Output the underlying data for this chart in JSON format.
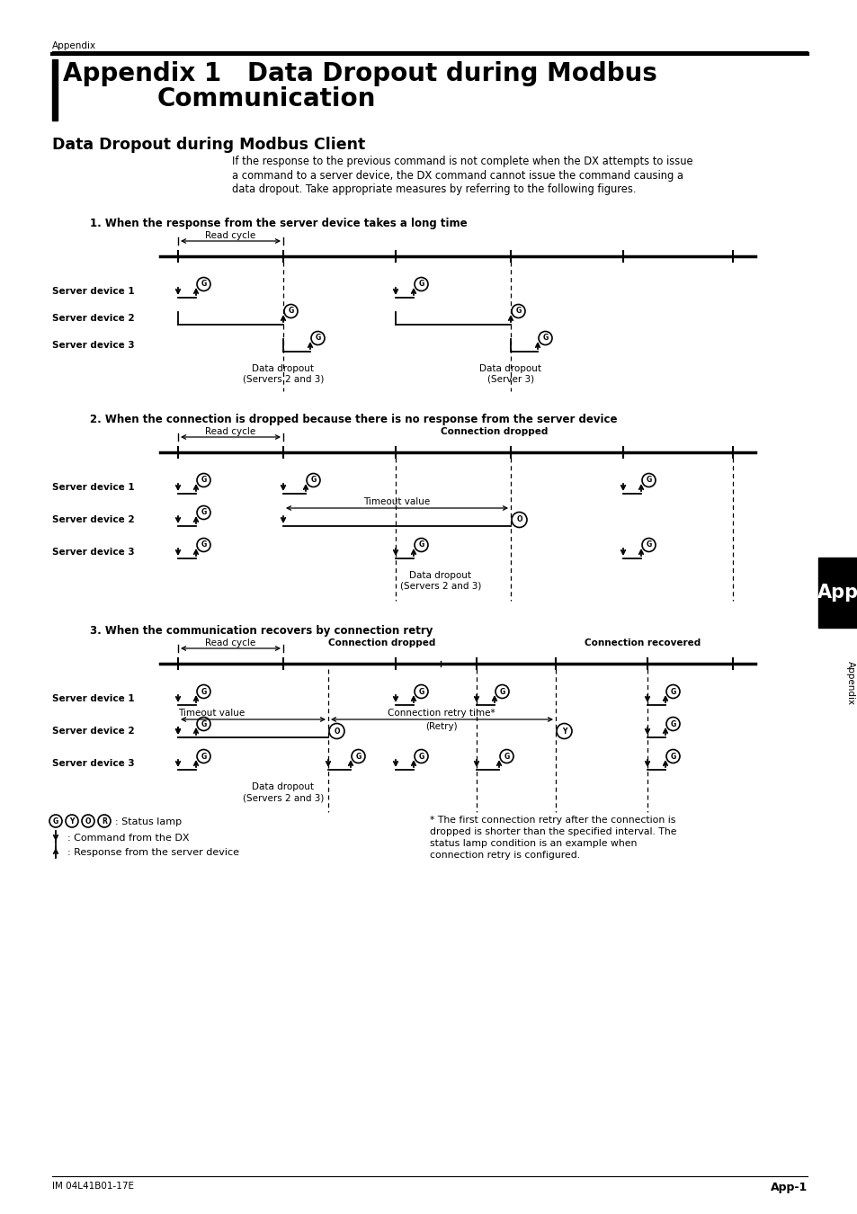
{
  "page_title": "Appendix",
  "chapter_title_1": "Appendix 1   Data Dropout during Modbus",
  "chapter_title_2": "Communication",
  "section_title": "Data Dropout during Modbus Client",
  "intro_lines": [
    "If the response to the previous command is not complete when the DX attempts to issue",
    "a command to a server device, the DX command cannot issue the command causing a",
    "data dropout. Take appropriate measures by referring to the following figures."
  ],
  "footer_left": "IM 04L41B01-17E",
  "footer_right": "App-1",
  "bg_color": "#ffffff",
  "d1_title": "1. When the response from the server device takes a long time",
  "d2_title": "2. When the connection is dropped because there is no response from the server device",
  "d3_title": "3. When the communication recovers by connection retry",
  "legend_status": ": Status lamp",
  "legend_cmd": ": Command from the DX",
  "legend_resp": ": Response from the server device",
  "footnote_lines": [
    "* The first connection retry after the connection is",
    "dropped is shorter than the specified interval. The",
    "status lamp condition is an example when",
    "connection retry is configured."
  ]
}
